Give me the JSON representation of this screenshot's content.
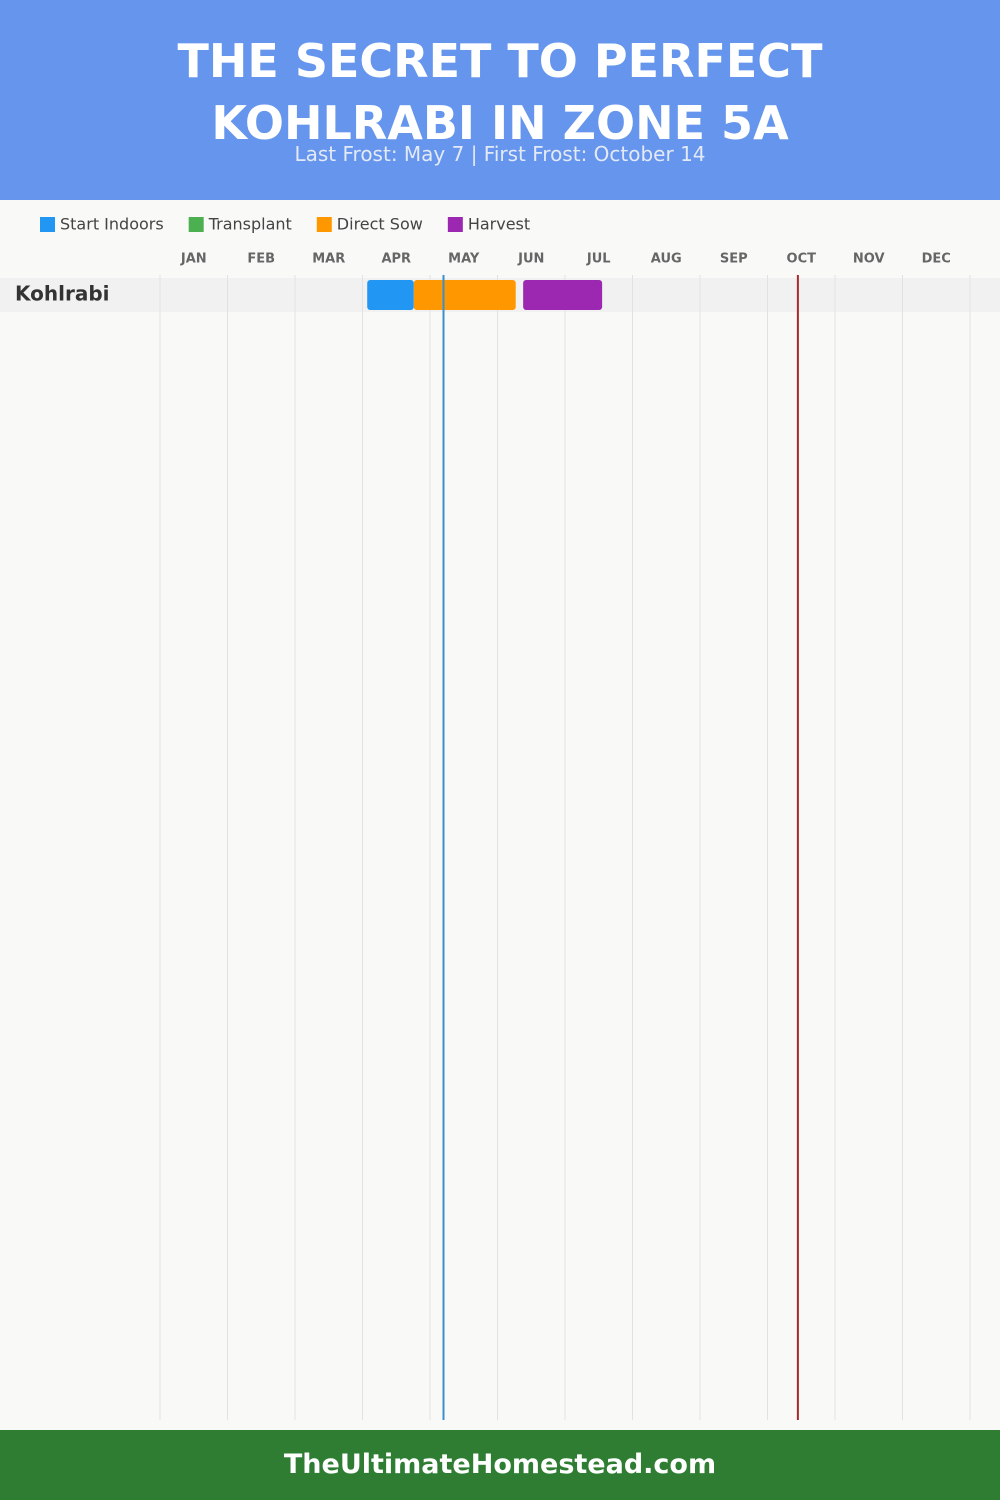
{
  "chart_data": {
    "type": "gantt",
    "title": "THE SECRET TO PERFECT KOHLRABI IN ZONE 5A",
    "subtitle": "Last Frost: May 7 | First Frost: October 14",
    "months": [
      "JAN",
      "FEB",
      "MAR",
      "APR",
      "MAY",
      "JUN",
      "JUL",
      "AUG",
      "SEP",
      "OCT",
      "NOV",
      "DEC"
    ],
    "xlim": [
      0,
      12
    ],
    "categories": [
      "Kohlrabi"
    ],
    "series": [
      {
        "name": "Start Indoors",
        "color": "#2196f3",
        "values": [
          [
            3.07,
            3.76
          ]
        ]
      },
      {
        "name": "Transplant",
        "color": "#4caf50",
        "values": [
          null
        ]
      },
      {
        "name": "Direct Sow",
        "color": "#ff9800",
        "values": [
          [
            3.76,
            5.27
          ]
        ]
      },
      {
        "name": "Harvest",
        "color": "#9c27b0",
        "values": [
          [
            5.38,
            6.55
          ]
        ]
      }
    ],
    "markers": [
      {
        "value": 4.2,
        "color": "#3a8fd0"
      },
      {
        "value": 9.45,
        "color": "#a52a2a"
      }
    ],
    "grid": true
  },
  "footer": "TheUltimateHomestead.com"
}
